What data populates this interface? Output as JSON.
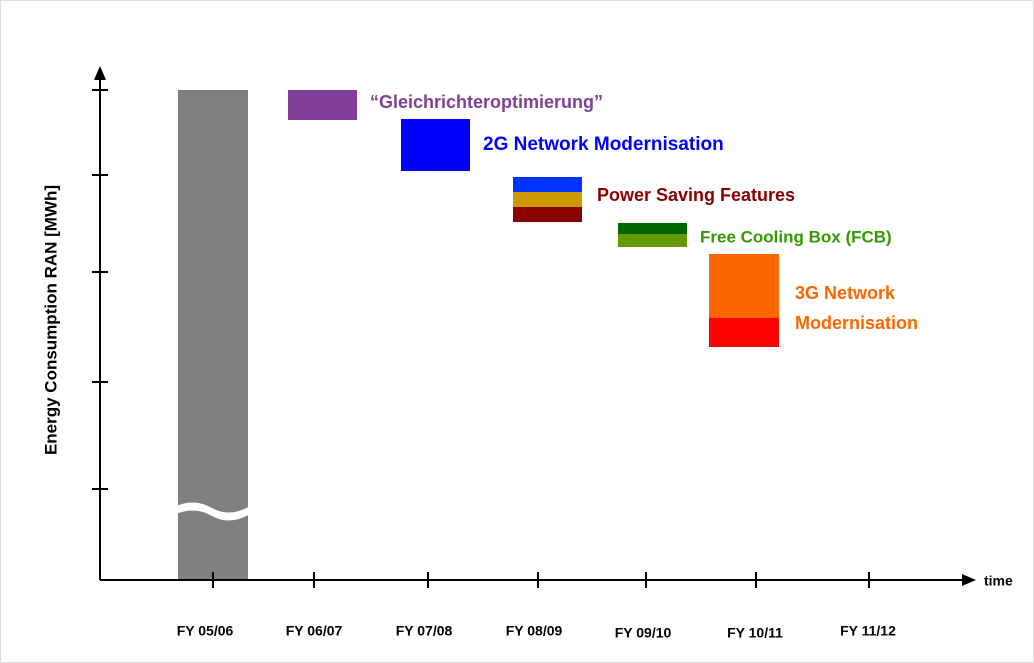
{
  "y_axis_label": "Energy Consumption RAN  [MWh]",
  "x_axis_label": "time",
  "categories": [
    "FY 05/06",
    "FY 06/07",
    "FY 07/08",
    "FY 08/09",
    "FY 09/10",
    "FY 10/11",
    "FY 11/12"
  ],
  "steps": [
    {
      "label": "“Gleichrichteroptimierung”"
    },
    {
      "label": "2G Network Modernisation"
    },
    {
      "label": "Power Saving Features"
    },
    {
      "label": "Free Cooling Box (FCB)"
    },
    {
      "label_lines": [
        "3G Network",
        "Modernisation"
      ]
    }
  ]
}
